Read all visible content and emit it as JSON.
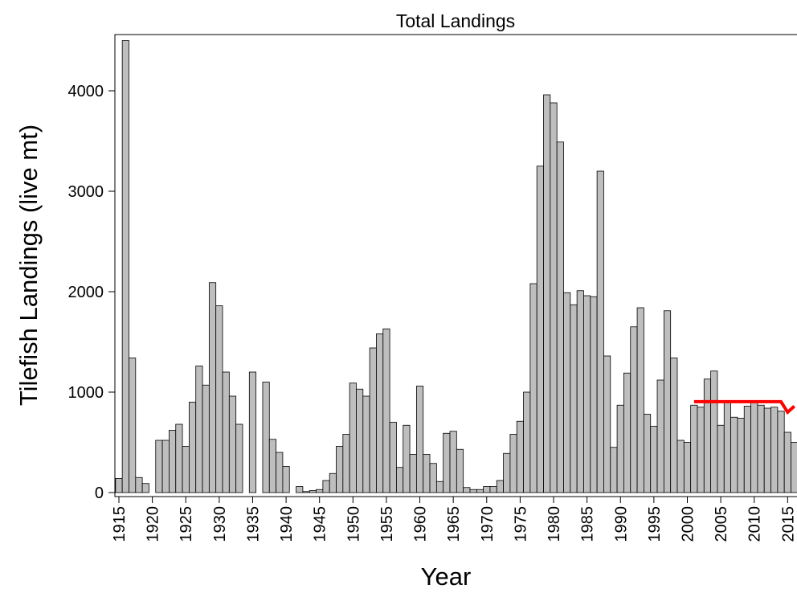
{
  "chart_data": {
    "type": "bar",
    "title": "Total Landings",
    "x_label": "Year",
    "y_label": "Tilefish Landings (live mt)",
    "x": [
      1915,
      1916,
      1917,
      1918,
      1919,
      1920,
      1921,
      1922,
      1923,
      1924,
      1925,
      1926,
      1927,
      1928,
      1929,
      1930,
      1931,
      1932,
      1933,
      1934,
      1935,
      1936,
      1937,
      1938,
      1939,
      1940,
      1941,
      1942,
      1943,
      1944,
      1945,
      1946,
      1947,
      1948,
      1949,
      1950,
      1951,
      1952,
      1953,
      1954,
      1955,
      1956,
      1957,
      1958,
      1959,
      1960,
      1961,
      1962,
      1963,
      1964,
      1965,
      1966,
      1967,
      1968,
      1969,
      1970,
      1971,
      1972,
      1973,
      1974,
      1975,
      1976,
      1977,
      1978,
      1979,
      1980,
      1981,
      1982,
      1983,
      1984,
      1985,
      1986,
      1987,
      1988,
      1989,
      1990,
      1991,
      1992,
      1993,
      1994,
      1995,
      1996,
      1997,
      1998,
      1999,
      2000,
      2001,
      2002,
      2003,
      2004,
      2005,
      2006,
      2007,
      2008,
      2009,
      2010,
      2011,
      2012,
      2013,
      2014,
      2015,
      2016
    ],
    "values": [
      140,
      4500,
      1340,
      150,
      90,
      0,
      520,
      520,
      620,
      680,
      460,
      900,
      1260,
      1070,
      2090,
      1860,
      1200,
      960,
      680,
      0,
      1200,
      0,
      1100,
      530,
      400,
      260,
      0,
      60,
      10,
      20,
      30,
      120,
      190,
      460,
      580,
      1090,
      1030,
      960,
      1440,
      1580,
      1630,
      700,
      250,
      670,
      380,
      1060,
      380,
      290,
      110,
      590,
      610,
      430,
      50,
      30,
      30,
      60,
      60,
      120,
      390,
      580,
      710,
      1000,
      2080,
      3250,
      3960,
      3880,
      3490,
      1990,
      1870,
      2010,
      1960,
      1950,
      3200,
      1360,
      450,
      870,
      1190,
      1650,
      1840,
      780,
      660,
      1120,
      1810,
      1340,
      520,
      500,
      870,
      850,
      1130,
      1210,
      670,
      900,
      750,
      740,
      860,
      910,
      870,
      840,
      850,
      810,
      600,
      500
    ],
    "color": "#bebebe",
    "overlay": {
      "type": "line",
      "color": "#ff0000",
      "x": [
        2001,
        2002,
        2003,
        2004,
        2005,
        2006,
        2007,
        2008,
        2009,
        2010,
        2011,
        2012,
        2013,
        2014,
        2015,
        2016
      ],
      "values": [
        905,
        905,
        905,
        905,
        905,
        905,
        905,
        905,
        905,
        905,
        905,
        905,
        905,
        905,
        800,
        860
      ]
    },
    "xlim": [
      1914.4,
      2016.4
    ],
    "ylim": [
      -40,
      4560
    ],
    "xticks": [
      1915,
      1920,
      1925,
      1930,
      1935,
      1940,
      1945,
      1950,
      1955,
      1960,
      1965,
      1970,
      1975,
      1980,
      1985,
      1990,
      1995,
      2000,
      2005,
      2010,
      2015
    ],
    "yticks": [
      0,
      1000,
      2000,
      3000,
      4000
    ]
  }
}
